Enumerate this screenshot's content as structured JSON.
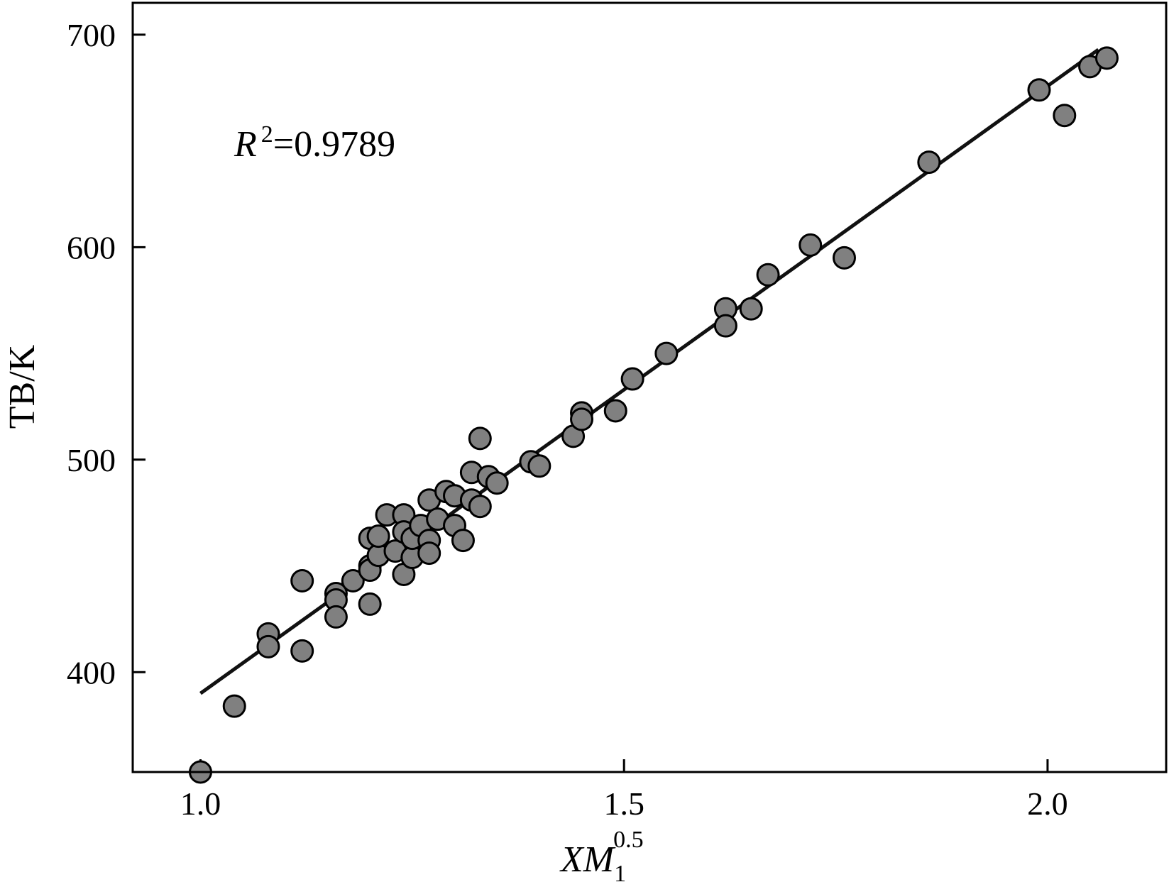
{
  "chart_data": {
    "type": "scatter",
    "xlabel_main": "XM",
    "xlabel_sub": "1",
    "xlabel_sup": "0.5",
    "ylabel": "TB/K",
    "xlim": [
      0.92,
      2.14
    ],
    "ylim": [
      353,
      715
    ],
    "x_ticks": [
      1.0,
      1.5,
      2.0
    ],
    "x_tick_labels": [
      "1.0",
      "1.5",
      "2.0"
    ],
    "y_ticks": [
      400,
      500,
      600,
      700
    ],
    "y_tick_labels": [
      "400",
      "500",
      "600",
      "700"
    ],
    "grid": false,
    "annotation": {
      "r_symbol": "R",
      "r_sup": "2",
      "r_value": "=0.9789"
    },
    "fit_line": {
      "x": [
        1.0,
        2.06
      ],
      "y": [
        390,
        693
      ]
    },
    "point_color": "#808080",
    "points": [
      [
        1.0,
        353
      ],
      [
        1.04,
        384
      ],
      [
        1.08,
        418
      ],
      [
        1.08,
        412
      ],
      [
        1.12,
        443
      ],
      [
        1.12,
        410
      ],
      [
        1.16,
        437
      ],
      [
        1.16,
        434
      ],
      [
        1.16,
        426
      ],
      [
        1.18,
        443
      ],
      [
        1.2,
        450
      ],
      [
        1.2,
        448
      ],
      [
        1.2,
        432
      ],
      [
        1.2,
        463
      ],
      [
        1.21,
        455
      ],
      [
        1.21,
        464
      ],
      [
        1.22,
        474
      ],
      [
        1.23,
        457
      ],
      [
        1.24,
        474
      ],
      [
        1.24,
        466
      ],
      [
        1.24,
        446
      ],
      [
        1.25,
        454
      ],
      [
        1.25,
        463
      ],
      [
        1.26,
        469
      ],
      [
        1.27,
        481
      ],
      [
        1.27,
        462
      ],
      [
        1.27,
        456
      ],
      [
        1.28,
        472
      ],
      [
        1.29,
        485
      ],
      [
        1.3,
        469
      ],
      [
        1.3,
        483
      ],
      [
        1.31,
        462
      ],
      [
        1.32,
        481
      ],
      [
        1.32,
        494
      ],
      [
        1.33,
        510
      ],
      [
        1.33,
        478
      ],
      [
        1.34,
        492
      ],
      [
        1.35,
        489
      ],
      [
        1.39,
        499
      ],
      [
        1.4,
        497
      ],
      [
        1.44,
        511
      ],
      [
        1.45,
        522
      ],
      [
        1.45,
        519
      ],
      [
        1.49,
        523
      ],
      [
        1.51,
        538
      ],
      [
        1.55,
        550
      ],
      [
        1.62,
        571
      ],
      [
        1.62,
        563
      ],
      [
        1.65,
        571
      ],
      [
        1.67,
        587
      ],
      [
        1.72,
        601
      ],
      [
        1.76,
        595
      ],
      [
        1.86,
        640
      ],
      [
        1.99,
        674
      ],
      [
        2.02,
        662
      ],
      [
        2.05,
        685
      ],
      [
        2.07,
        689
      ]
    ]
  }
}
